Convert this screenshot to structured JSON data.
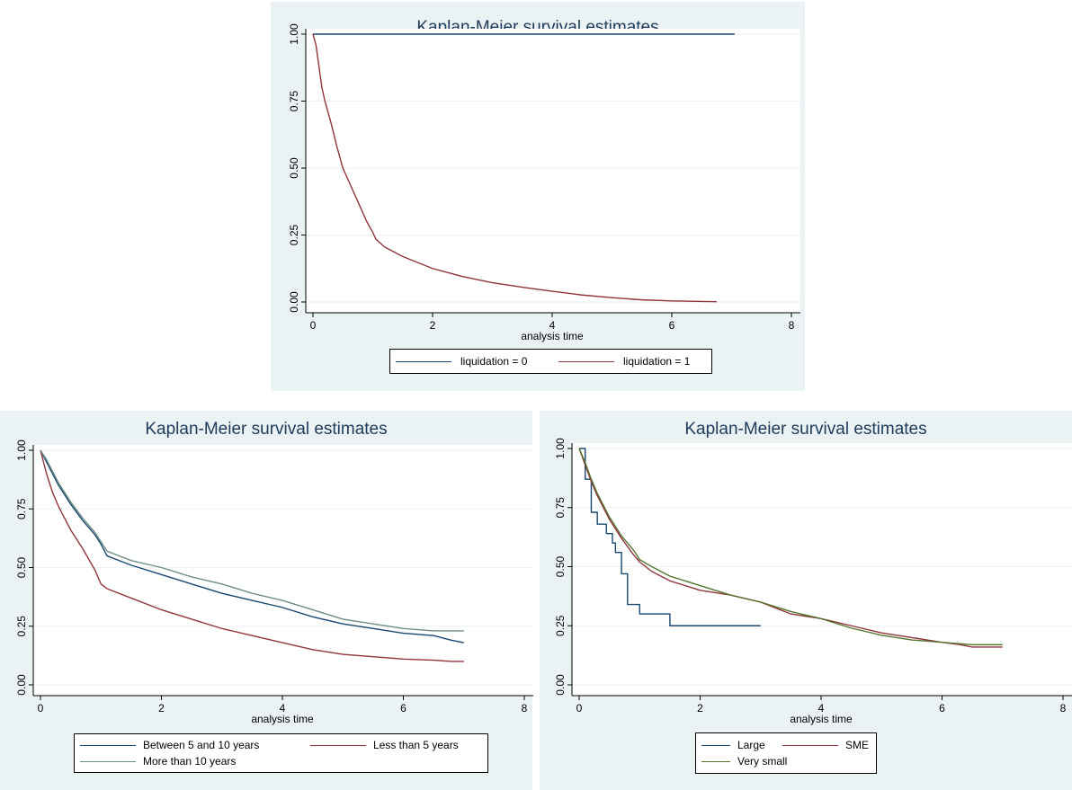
{
  "colors": {
    "panel_bg": "#eaf2f3",
    "plot_bg": "#ffffff",
    "grid": "#eaf2f3",
    "title": "#1e3b5a",
    "navy": "#1a476f",
    "maroon": "#90353b",
    "olive": "#6e8e84",
    "forest": "#55752f"
  },
  "chart_data": [
    {
      "type": "line",
      "title": "Kaplan-Meier survival estimates",
      "xlabel": "analysis time",
      "ylabel": "",
      "xlim": [
        0,
        8
      ],
      "ylim": [
        0,
        1
      ],
      "x_ticks": [
        "0",
        "2",
        "4",
        "6",
        "8"
      ],
      "y_ticks": [
        "0.00",
        "0.25",
        "0.50",
        "0.75",
        "1.00"
      ],
      "grid": true,
      "legend_position": "bottom",
      "series": [
        {
          "name": "liquidation = 0",
          "color": "#1a476f",
          "x": [
            0,
            7.05
          ],
          "y": [
            1.0,
            1.0
          ]
        },
        {
          "name": "liquidation = 1",
          "color": "#90353b",
          "x": [
            0,
            0.05,
            0.1,
            0.15,
            0.2,
            0.3,
            0.4,
            0.5,
            0.6,
            0.7,
            0.8,
            0.9,
            1.0,
            1.05,
            1.2,
            1.5,
            2.0,
            2.5,
            3.0,
            3.5,
            4.0,
            4.5,
            5.0,
            5.5,
            6.0,
            6.5,
            6.75
          ],
          "y": [
            1.0,
            0.96,
            0.88,
            0.8,
            0.75,
            0.67,
            0.58,
            0.5,
            0.45,
            0.4,
            0.35,
            0.3,
            0.26,
            0.235,
            0.205,
            0.17,
            0.125,
            0.095,
            0.072,
            0.055,
            0.04,
            0.026,
            0.016,
            0.008,
            0.004,
            0.002,
            0.001
          ]
        }
      ]
    },
    {
      "type": "line",
      "title": "Kaplan-Meier survival estimates",
      "xlabel": "analysis time",
      "ylabel": "",
      "xlim": [
        0,
        8
      ],
      "ylim": [
        0,
        1
      ],
      "x_ticks": [
        "0",
        "2",
        "4",
        "6",
        "8"
      ],
      "y_ticks": [
        "0.00",
        "0.25",
        "0.50",
        "0.75",
        "1.00"
      ],
      "grid": true,
      "legend_position": "bottom",
      "series": [
        {
          "name": "Between 5 and 10 years",
          "color": "#1a476f",
          "x": [
            0,
            0.1,
            0.2,
            0.3,
            0.5,
            0.7,
            0.9,
            1.0,
            1.1,
            1.5,
            2.0,
            2.5,
            3.0,
            3.5,
            4.0,
            4.5,
            5.0,
            5.5,
            6.0,
            6.5,
            6.8,
            7.0
          ],
          "y": [
            1.0,
            0.95,
            0.9,
            0.85,
            0.77,
            0.7,
            0.64,
            0.6,
            0.55,
            0.51,
            0.47,
            0.43,
            0.39,
            0.36,
            0.33,
            0.29,
            0.26,
            0.24,
            0.22,
            0.21,
            0.19,
            0.18
          ]
        },
        {
          "name": "Less than 5 years",
          "color": "#90353b",
          "x": [
            0,
            0.1,
            0.2,
            0.3,
            0.5,
            0.7,
            0.9,
            1.0,
            1.1,
            1.5,
            2.0,
            2.5,
            3.0,
            3.5,
            4.0,
            4.5,
            5.0,
            5.5,
            6.0,
            6.5,
            6.8,
            7.0
          ],
          "y": [
            1.0,
            0.9,
            0.82,
            0.76,
            0.66,
            0.58,
            0.49,
            0.43,
            0.41,
            0.37,
            0.32,
            0.28,
            0.24,
            0.21,
            0.18,
            0.15,
            0.13,
            0.12,
            0.11,
            0.105,
            0.1,
            0.1
          ]
        },
        {
          "name": "More than 10 years",
          "color": "#6e8e84",
          "x": [
            0,
            0.1,
            0.2,
            0.3,
            0.5,
            0.7,
            0.9,
            1.0,
            1.1,
            1.5,
            2.0,
            2.5,
            3.0,
            3.5,
            4.0,
            4.5,
            5.0,
            5.5,
            6.0,
            6.5,
            6.8,
            7.0
          ],
          "y": [
            1.0,
            0.96,
            0.91,
            0.86,
            0.78,
            0.71,
            0.65,
            0.61,
            0.57,
            0.53,
            0.5,
            0.46,
            0.43,
            0.39,
            0.36,
            0.32,
            0.28,
            0.26,
            0.24,
            0.23,
            0.23,
            0.23
          ]
        }
      ]
    },
    {
      "type": "line",
      "title": "Kaplan-Meier survival estimates",
      "xlabel": "analysis time",
      "ylabel": "",
      "xlim": [
        0,
        8
      ],
      "ylim": [
        0,
        1
      ],
      "x_ticks": [
        "0",
        "2",
        "4",
        "6",
        "8"
      ],
      "y_ticks": [
        "0.00",
        "0.25",
        "0.50",
        "0.75",
        "1.00"
      ],
      "grid": true,
      "legend_position": "bottom",
      "series": [
        {
          "name": "Large",
          "color": "#1a476f",
          "step": true,
          "x": [
            0,
            0.1,
            0.2,
            0.3,
            0.45,
            0.55,
            0.6,
            0.7,
            0.8,
            1.0,
            1.5,
            3.0
          ],
          "y": [
            1.0,
            0.87,
            0.73,
            0.68,
            0.64,
            0.6,
            0.56,
            0.47,
            0.34,
            0.3,
            0.25,
            0.25
          ]
        },
        {
          "name": "SME",
          "color": "#90353b",
          "x": [
            0,
            0.1,
            0.2,
            0.3,
            0.5,
            0.7,
            0.9,
            1.0,
            1.2,
            1.5,
            2.0,
            2.5,
            3.0,
            3.5,
            4.0,
            4.5,
            5.0,
            5.5,
            6.0,
            6.3,
            6.5,
            7.0
          ],
          "y": [
            1.0,
            0.93,
            0.86,
            0.8,
            0.7,
            0.62,
            0.55,
            0.52,
            0.48,
            0.44,
            0.4,
            0.38,
            0.35,
            0.3,
            0.28,
            0.25,
            0.22,
            0.2,
            0.18,
            0.17,
            0.16,
            0.16
          ]
        },
        {
          "name": "Very small",
          "color": "#55752f",
          "x": [
            0,
            0.1,
            0.2,
            0.3,
            0.5,
            0.7,
            0.9,
            1.0,
            1.2,
            1.5,
            2.0,
            2.5,
            3.0,
            3.5,
            4.0,
            4.5,
            5.0,
            5.5,
            6.0,
            6.5,
            7.0
          ],
          "y": [
            1.0,
            0.94,
            0.87,
            0.81,
            0.71,
            0.63,
            0.57,
            0.53,
            0.5,
            0.46,
            0.42,
            0.38,
            0.35,
            0.31,
            0.28,
            0.24,
            0.21,
            0.19,
            0.18,
            0.17,
            0.17
          ]
        }
      ]
    }
  ]
}
